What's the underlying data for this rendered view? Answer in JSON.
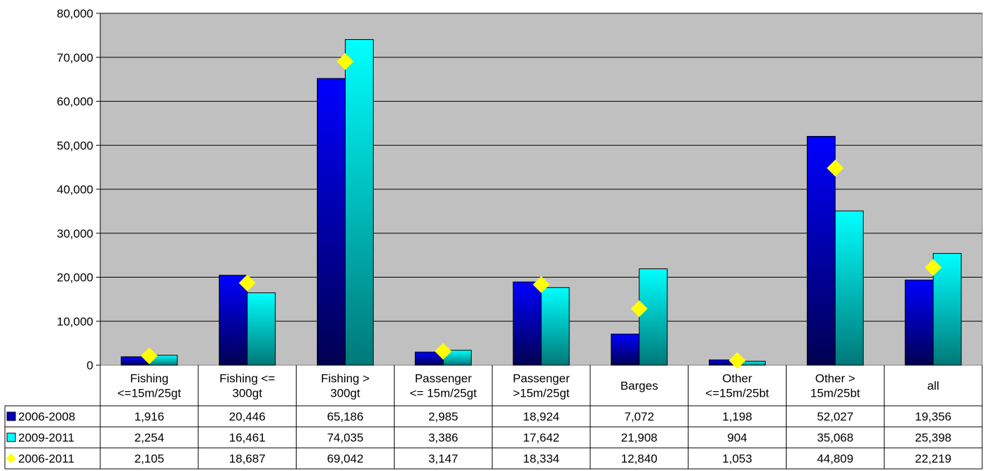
{
  "chart_data": {
    "type": "bar",
    "categories": [
      [
        "Fishing",
        "<=15m/25gt"
      ],
      [
        "Fishing <=",
        "300gt"
      ],
      [
        "Fishing >",
        "300gt"
      ],
      [
        "Passenger",
        "<= 15m/25gt"
      ],
      [
        "Passenger",
        ">15m/25gt"
      ],
      [
        "Barges"
      ],
      [
        "Other",
        "<=15m/25bt"
      ],
      [
        "Other >",
        "15m/25bt"
      ],
      [
        "all"
      ]
    ],
    "series": [
      {
        "name": "2006-2008",
        "kind": "bar",
        "color": "#0000c0",
        "values": [
          1916,
          20446,
          65186,
          2985,
          18924,
          7072,
          1198,
          52027,
          19356
        ],
        "labels": [
          "1,916",
          "20,446",
          "65,186",
          "2,985",
          "18,924",
          "7,072",
          "1,198",
          "52,027",
          "19,356"
        ]
      },
      {
        "name": "2009-2011",
        "kind": "bar",
        "color": "#00ffff",
        "values": [
          2254,
          16461,
          74035,
          3386,
          17642,
          21908,
          904,
          35068,
          25398
        ],
        "labels": [
          "2,254",
          "16,461",
          "74,035",
          "3,386",
          "17,642",
          "21,908",
          "904",
          "35,068",
          "25,398"
        ]
      },
      {
        "name": "2006-2011",
        "kind": "marker",
        "color": "#ffff00",
        "values": [
          2105,
          18687,
          69042,
          3147,
          18334,
          12840,
          1053,
          44809,
          22219
        ],
        "labels": [
          "2,105",
          "18,687",
          "69,042",
          "3,147",
          "18,334",
          "12,840",
          "1,053",
          "44,809",
          "22,219"
        ]
      }
    ],
    "ylim": [
      0,
      80000
    ],
    "yticks": [
      0,
      10000,
      20000,
      30000,
      40000,
      50000,
      60000,
      70000,
      80000
    ],
    "ytick_labels": [
      "0",
      "10,000",
      "20,000",
      "30,000",
      "40,000",
      "50,000",
      "60,000",
      "70,000",
      "80,000"
    ],
    "grid": true,
    "plot_background": "#c0c0c0",
    "legend": "data-table"
  }
}
